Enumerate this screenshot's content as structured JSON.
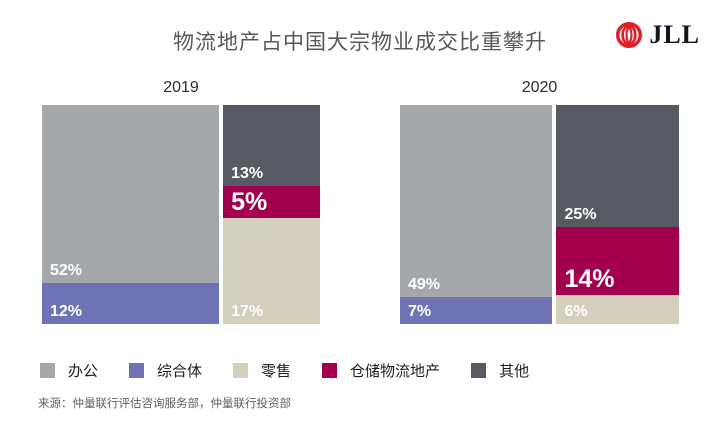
{
  "title": "物流地产占中国大宗物业成交比重攀升",
  "logo": {
    "text": "JLL",
    "mark_color": "#e21f26"
  },
  "chart_data": [
    {
      "type": "mekko",
      "title": "2019",
      "note": "column widths proportional to column totals; segments stacked to 100% per column",
      "columns": [
        {
          "segments": [
            {
              "id": "office",
              "label": "办公",
              "value": 52
            },
            {
              "id": "mixed-use",
              "label": "综合体",
              "value": 12
            }
          ]
        },
        {
          "segments": [
            {
              "id": "other",
              "label": "其他",
              "value": 13
            },
            {
              "id": "logistics",
              "label": "仓储物流地产",
              "value": 5,
              "emphasis": true
            },
            {
              "id": "retail",
              "label": "零售",
              "value": 17
            }
          ]
        }
      ]
    },
    {
      "type": "mekko",
      "title": "2020",
      "note": "column widths proportional to column totals; segments stacked to 100% per column",
      "columns": [
        {
          "segments": [
            {
              "id": "office",
              "label": "办公",
              "value": 49
            },
            {
              "id": "mixed-use",
              "label": "综合体",
              "value": 7
            }
          ]
        },
        {
          "segments": [
            {
              "id": "other",
              "label": "其他",
              "value": 25
            },
            {
              "id": "logistics",
              "label": "仓储物流地产",
              "value": 14,
              "emphasis": true
            },
            {
              "id": "retail",
              "label": "零售",
              "value": 6
            }
          ]
        }
      ]
    }
  ],
  "legend": [
    {
      "id": "office",
      "label": "办公",
      "color": "#a5a8ab"
    },
    {
      "id": "mixed-use",
      "label": "综合体",
      "color": "#6f73b5"
    },
    {
      "id": "retail",
      "label": "零售",
      "color": "#d4cebd"
    },
    {
      "id": "logistics",
      "label": "仓储物流地产",
      "color": "#a2004f"
    },
    {
      "id": "other",
      "label": "其他",
      "color": "#575a62"
    }
  ],
  "source": "来源：仲量联行评估咨询服务部，仲量联行投资部"
}
